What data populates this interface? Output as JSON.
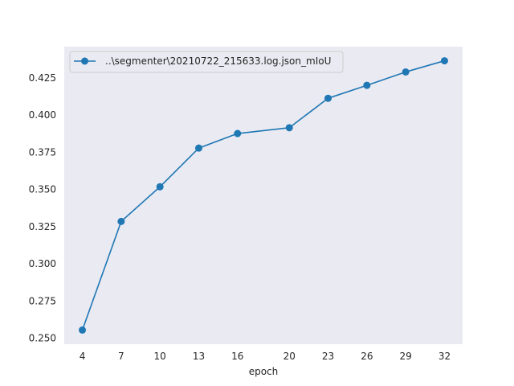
{
  "chart_data": {
    "type": "line",
    "title": "",
    "xlabel": "epoch",
    "ylabel": "",
    "x": [
      4,
      7,
      10,
      13,
      16,
      20,
      23,
      26,
      29,
      32
    ],
    "xticks": [
      4,
      7,
      10,
      13,
      16,
      20,
      23,
      26,
      29,
      32
    ],
    "yticks": [
      0.25,
      0.275,
      0.3,
      0.325,
      0.35,
      0.375,
      0.4,
      0.425
    ],
    "ytick_labels": [
      "0.250",
      "0.275",
      "0.300",
      "0.325",
      "0.350",
      "0.375",
      "0.400",
      "0.425"
    ],
    "xlim": [
      2.6,
      33.4
    ],
    "ylim": [
      0.246,
      0.446
    ],
    "grid": false,
    "legend_position": "upper-left",
    "series": [
      {
        "name": "..\\segmenter\\20210722_215633.log.json_mIoU",
        "color": "#1f77b4",
        "marker": "circle",
        "values": [
          0.2555,
          0.3285,
          0.3518,
          0.3778,
          0.3876,
          0.3915,
          0.4113,
          0.42,
          0.429,
          0.4365
        ]
      }
    ],
    "background_color": "#eaeaf2"
  }
}
